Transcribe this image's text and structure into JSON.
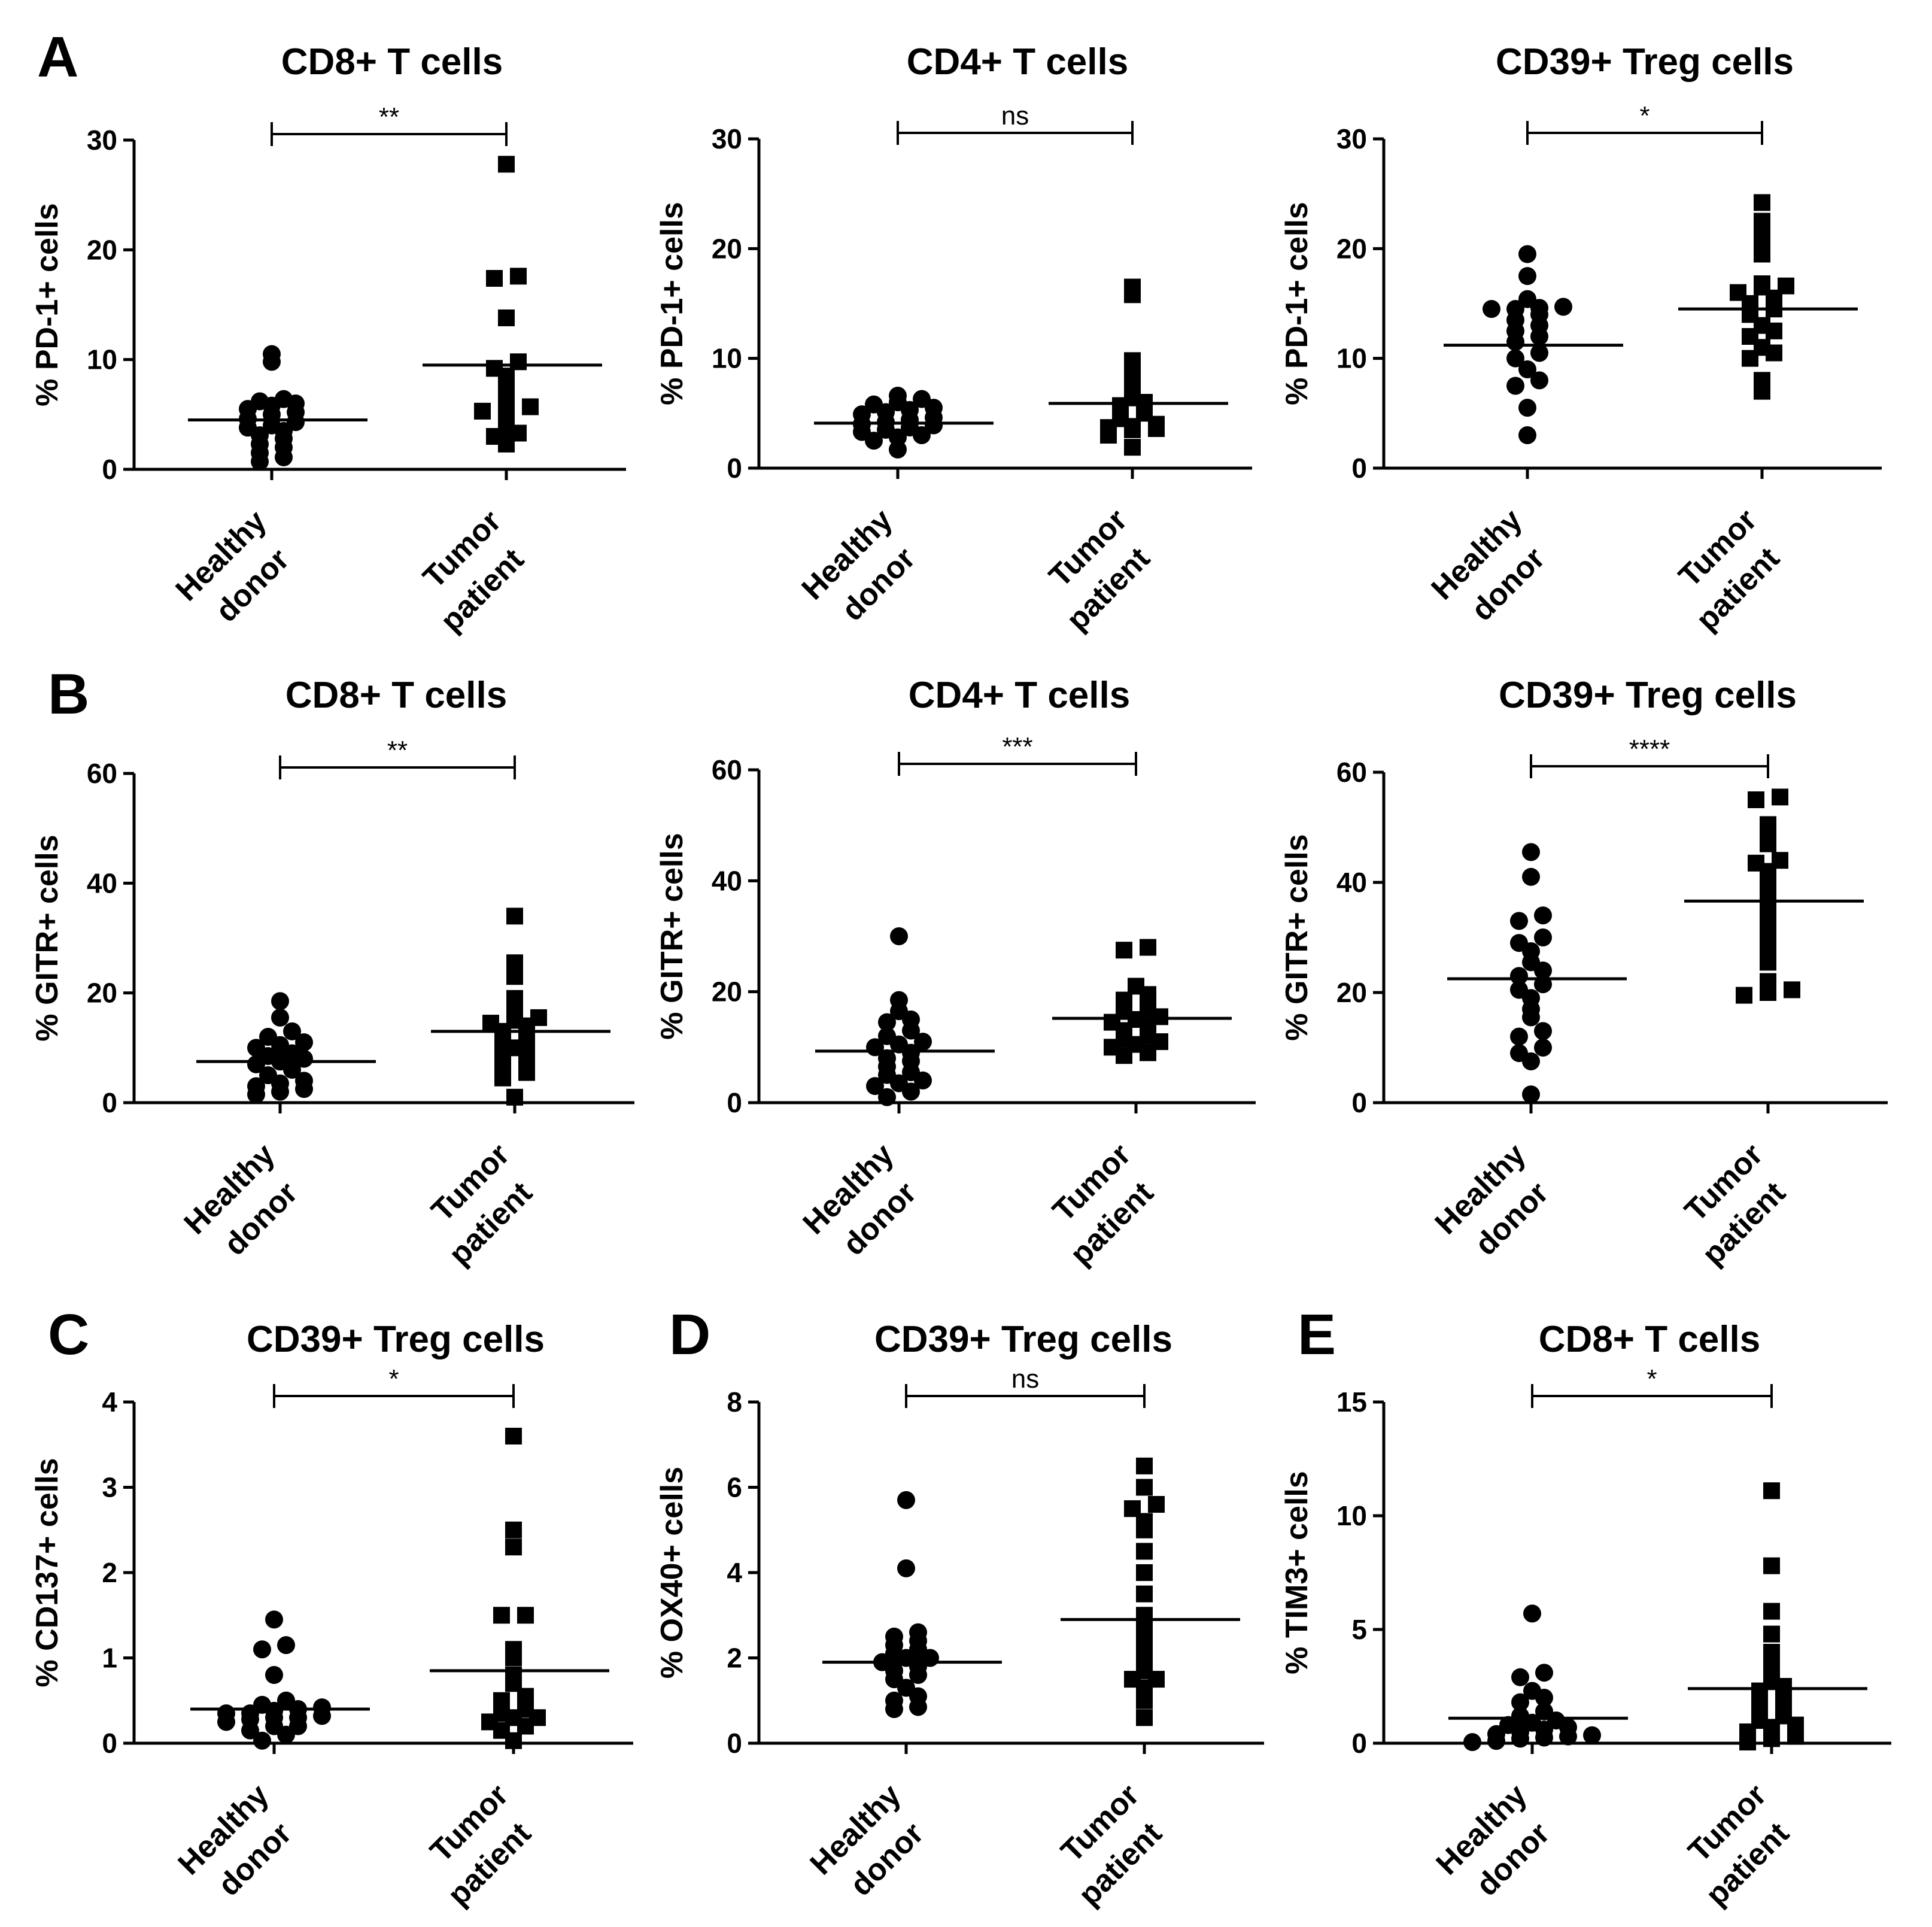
{
  "figure": {
    "panel_letters": [
      "A",
      "B",
      "C",
      "D",
      "E"
    ]
  },
  "chart_data": [
    {
      "type": "scatter",
      "title": "CD8+ T cells",
      "ylabel": "% PD-1+ cells",
      "ylim": [
        0,
        30
      ],
      "yticks": [
        0,
        10,
        20,
        30
      ],
      "categories": [
        "Healthy donor",
        "Tumor patient"
      ],
      "category_lines": [
        [
          "Healthy",
          "donor"
        ],
        [
          "Tumor",
          "patient"
        ]
      ],
      "significance": "**",
      "series": [
        {
          "name": "Healthy donor",
          "marker": "circle",
          "mean": 4.5,
          "values": [
            0.7,
            1.1,
            1.5,
            2.0,
            2.3,
            2.8,
            3.1,
            3.5,
            3.8,
            4.0,
            4.3,
            4.6,
            5.0,
            5.2,
            5.5,
            5.8,
            6.0,
            6.2,
            6.4,
            9.8,
            10.5
          ]
        },
        {
          "name": "Tumor patient",
          "marker": "square",
          "mean": 9.5,
          "values": [
            2.3,
            3.0,
            3.3,
            3.7,
            4.5,
            5.3,
            5.6,
            5.7,
            6.0,
            7.0,
            8.5,
            9.2,
            9.8,
            13.8,
            17.4,
            17.6,
            27.8
          ]
        }
      ]
    },
    {
      "type": "scatter",
      "title": "CD4+ T cells",
      "ylabel": "% PD-1+ cells",
      "ylim": [
        0,
        30
      ],
      "yticks": [
        0,
        10,
        20,
        30
      ],
      "categories": [
        "Healthy donor",
        "Tumor patient"
      ],
      "category_lines": [
        [
          "Healthy",
          "donor"
        ],
        [
          "Tumor",
          "patient"
        ]
      ],
      "significance": "ns",
      "series": [
        {
          "name": "Healthy donor",
          "marker": "circle",
          "mean": 4.1,
          "values": [
            1.7,
            2.5,
            2.8,
            3.0,
            3.3,
            3.5,
            3.7,
            3.9,
            4.0,
            4.2,
            4.4,
            4.6,
            4.9,
            5.1,
            5.3,
            5.5,
            5.8,
            6.0,
            6.3,
            6.6
          ]
        },
        {
          "name": "Tumor patient",
          "marker": "square",
          "mean": 5.9,
          "values": [
            1.9,
            3.0,
            3.5,
            3.6,
            3.7,
            3.8,
            4.0,
            4.5,
            5.0,
            5.7,
            6.0,
            6.4,
            7.5,
            9.0,
            9.8,
            15.8,
            16.5
          ]
        }
      ]
    },
    {
      "type": "scatter",
      "title": "CD39+ Treg cells",
      "ylabel": "% PD-1+ cells",
      "ylim": [
        0,
        30
      ],
      "yticks": [
        0,
        10,
        20,
        30
      ],
      "categories": [
        "Healthy donor",
        "Tumor patient"
      ],
      "category_lines": [
        [
          "Healthy",
          "donor"
        ],
        [
          "Tumor",
          "patient"
        ]
      ],
      "significance": "*",
      "series": [
        {
          "name": "Healthy donor",
          "marker": "circle",
          "mean": 11.2,
          "values": [
            3.0,
            5.5,
            7.5,
            8.0,
            9.0,
            10.0,
            10.5,
            11.5,
            12.0,
            12.5,
            13.0,
            13.5,
            14.0,
            14.5,
            14.5,
            14.6,
            14.7,
            15.4,
            17.5,
            19.5
          ]
        },
        {
          "name": "Tumor patient",
          "marker": "square",
          "mean": 14.5,
          "values": [
            7.0,
            8.0,
            10.0,
            10.5,
            11.0,
            12.0,
            12.5,
            13.0,
            14.0,
            14.5,
            15.0,
            15.5,
            16.0,
            16.5,
            16.6,
            16.8,
            19.5,
            21.0,
            22.5,
            24.2
          ]
        }
      ]
    },
    {
      "type": "scatter",
      "title": "CD8+ T cells",
      "ylabel": "% GITR+ cells",
      "ylim": [
        0,
        60
      ],
      "yticks": [
        0,
        20,
        40,
        60
      ],
      "categories": [
        "Healthy donor",
        "Tumor patient"
      ],
      "category_lines": [
        [
          "Healthy",
          "donor"
        ],
        [
          "Tumor",
          "patient"
        ]
      ],
      "significance": "**",
      "series": [
        {
          "name": "Healthy donor",
          "marker": "circle",
          "mean": 7.5,
          "values": [
            1.5,
            2.0,
            2.5,
            3.0,
            3.5,
            4.0,
            5.0,
            6.0,
            7.0,
            7.5,
            8.0,
            8.5,
            9.0,
            10.0,
            10.5,
            11.0,
            12.0,
            13.0,
            15.5,
            18.5
          ]
        },
        {
          "name": "Tumor patient",
          "marker": "square",
          "mean": 13.0,
          "values": [
            1.0,
            4.5,
            5.5,
            6.5,
            7.5,
            8.5,
            9.0,
            10.0,
            11.5,
            12.0,
            13.0,
            14.0,
            14.5,
            15.0,
            15.5,
            16.0,
            19.0,
            23.0,
            25.5,
            34.0
          ]
        }
      ]
    },
    {
      "type": "scatter",
      "title": "CD4+ T cells",
      "ylabel": "% GITR+ cells",
      "ylim": [
        0,
        60
      ],
      "yticks": [
        0,
        20,
        40,
        60
      ],
      "categories": [
        "Healthy donor",
        "Tumor patient"
      ],
      "category_lines": [
        [
          "Healthy",
          "donor"
        ],
        [
          "Tumor",
          "patient"
        ]
      ],
      "significance": "***",
      "series": [
        {
          "name": "Healthy donor",
          "marker": "circle",
          "mean": 9.3,
          "values": [
            1.0,
            2.0,
            3.0,
            3.5,
            4.0,
            5.0,
            5.5,
            6.5,
            7.5,
            8.0,
            9.0,
            10.0,
            10.5,
            11.0,
            12.0,
            13.0,
            14.5,
            15.0,
            16.5,
            18.5,
            30.0
          ]
        },
        {
          "name": "Tumor patient",
          "marker": "square",
          "mean": 15.2,
          "values": [
            8.5,
            9.0,
            10.0,
            10.5,
            11.0,
            11.5,
            12.0,
            13.0,
            14.0,
            14.5,
            15.0,
            15.5,
            16.5,
            17.0,
            18.5,
            19.5,
            21.0,
            27.5,
            28.0
          ]
        }
      ]
    },
    {
      "type": "scatter",
      "title": "CD39+ Treg cells",
      "ylabel": "% GITR+ cells",
      "ylim": [
        0,
        60
      ],
      "yticks": [
        0,
        20,
        40,
        60
      ],
      "categories": [
        "Healthy donor",
        "Tumor patient"
      ],
      "category_lines": [
        [
          "Healthy",
          "donor"
        ],
        [
          "Tumor",
          "patient"
        ]
      ],
      "significance": "****",
      "series": [
        {
          "name": "Healthy donor",
          "marker": "circle",
          "mean": 22.5,
          "values": [
            1.5,
            7.5,
            9.0,
            10.0,
            12.0,
            13.0,
            15.5,
            17.0,
            19.0,
            20.5,
            21.5,
            23.0,
            24.0,
            25.5,
            27.5,
            29.0,
            30.0,
            33.0,
            34.0,
            41.0,
            45.5
          ]
        },
        {
          "name": "Tumor patient",
          "marker": "square",
          "mean": 36.6,
          "values": [
            19.5,
            20.0,
            20.5,
            22.0,
            25.5,
            27.5,
            30.0,
            32.0,
            34.0,
            35.5,
            37.5,
            40.0,
            42.0,
            43.5,
            44.0,
            47.0,
            48.5,
            50.5,
            55.0,
            55.5
          ]
        }
      ]
    },
    {
      "type": "scatter",
      "title": "CD39+ Treg cells",
      "ylabel": "% CD137+ cells",
      "ylim": [
        0,
        4
      ],
      "yticks": [
        0,
        1,
        2,
        3,
        4
      ],
      "categories": [
        "Healthy donor",
        "Tumor patient"
      ],
      "category_lines": [
        [
          "Healthy",
          "donor"
        ],
        [
          "Tumor",
          "patient"
        ]
      ],
      "significance": "*",
      "series": [
        {
          "name": "Healthy donor",
          "marker": "circle",
          "mean": 0.4,
          "values": [
            0.03,
            0.1,
            0.15,
            0.2,
            0.2,
            0.25,
            0.28,
            0.3,
            0.3,
            0.32,
            0.35,
            0.35,
            0.38,
            0.4,
            0.42,
            0.45,
            0.5,
            0.8,
            1.1,
            1.15,
            1.45
          ]
        },
        {
          "name": "Tumor patient",
          "marker": "square",
          "mean": 0.85,
          "values": [
            0.03,
            0.15,
            0.2,
            0.25,
            0.3,
            0.3,
            0.35,
            0.4,
            0.5,
            0.55,
            0.7,
            0.8,
            1.0,
            1.1,
            1.5,
            1.5,
            2.3,
            2.5,
            3.6
          ]
        }
      ]
    },
    {
      "type": "scatter",
      "title": "CD39+ Treg cells",
      "ylabel": "% OX40+ cells",
      "ylim": [
        0,
        8
      ],
      "yticks": [
        0,
        2,
        4,
        6,
        8
      ],
      "categories": [
        "Healthy donor",
        "Tumor patient"
      ],
      "category_lines": [
        [
          "Healthy",
          "donor"
        ],
        [
          "Tumor",
          "patient"
        ]
      ],
      "significance": "ns",
      "series": [
        {
          "name": "Healthy donor",
          "marker": "circle",
          "mean": 1.9,
          "values": [
            0.8,
            0.85,
            1.0,
            1.1,
            1.3,
            1.5,
            1.6,
            1.7,
            1.8,
            1.9,
            2.0,
            2.0,
            2.1,
            2.2,
            2.3,
            2.4,
            2.5,
            2.6,
            4.1,
            5.7
          ]
        },
        {
          "name": "Tumor patient",
          "marker": "square",
          "mean": 2.9,
          "values": [
            0.6,
            1.0,
            1.3,
            1.5,
            1.5,
            1.7,
            2.0,
            2.3,
            2.5,
            2.8,
            3.0,
            3.5,
            4.0,
            4.5,
            5.0,
            5.2,
            5.5,
            5.6,
            6.0,
            6.5
          ]
        }
      ]
    },
    {
      "type": "scatter",
      "title": "CD8+ T cells",
      "ylabel": "% TIM3+ cells",
      "ylim": [
        0,
        15
      ],
      "yticks": [
        0,
        5,
        10,
        15
      ],
      "categories": [
        "Healthy donor",
        "Tumor patient"
      ],
      "category_lines": [
        [
          "Healthy",
          "donor"
        ],
        [
          "Tumor",
          "patient"
        ]
      ],
      "significance": "*",
      "series": [
        {
          "name": "Healthy donor",
          "marker": "circle",
          "mean": 1.1,
          "values": [
            0.05,
            0.1,
            0.2,
            0.25,
            0.3,
            0.35,
            0.4,
            0.5,
            0.6,
            0.7,
            0.8,
            0.9,
            1.0,
            1.2,
            1.4,
            1.8,
            2.0,
            2.3,
            2.9,
            3.1,
            5.7
          ]
        },
        {
          "name": "Tumor patient",
          "marker": "square",
          "mean": 2.4,
          "values": [
            0.05,
            0.2,
            0.3,
            0.5,
            0.7,
            0.8,
            1.0,
            1.2,
            1.4,
            1.6,
            1.8,
            2.0,
            2.3,
            2.5,
            2.8,
            3.5,
            4.0,
            4.8,
            5.8,
            7.8,
            11.1
          ]
        }
      ]
    }
  ]
}
